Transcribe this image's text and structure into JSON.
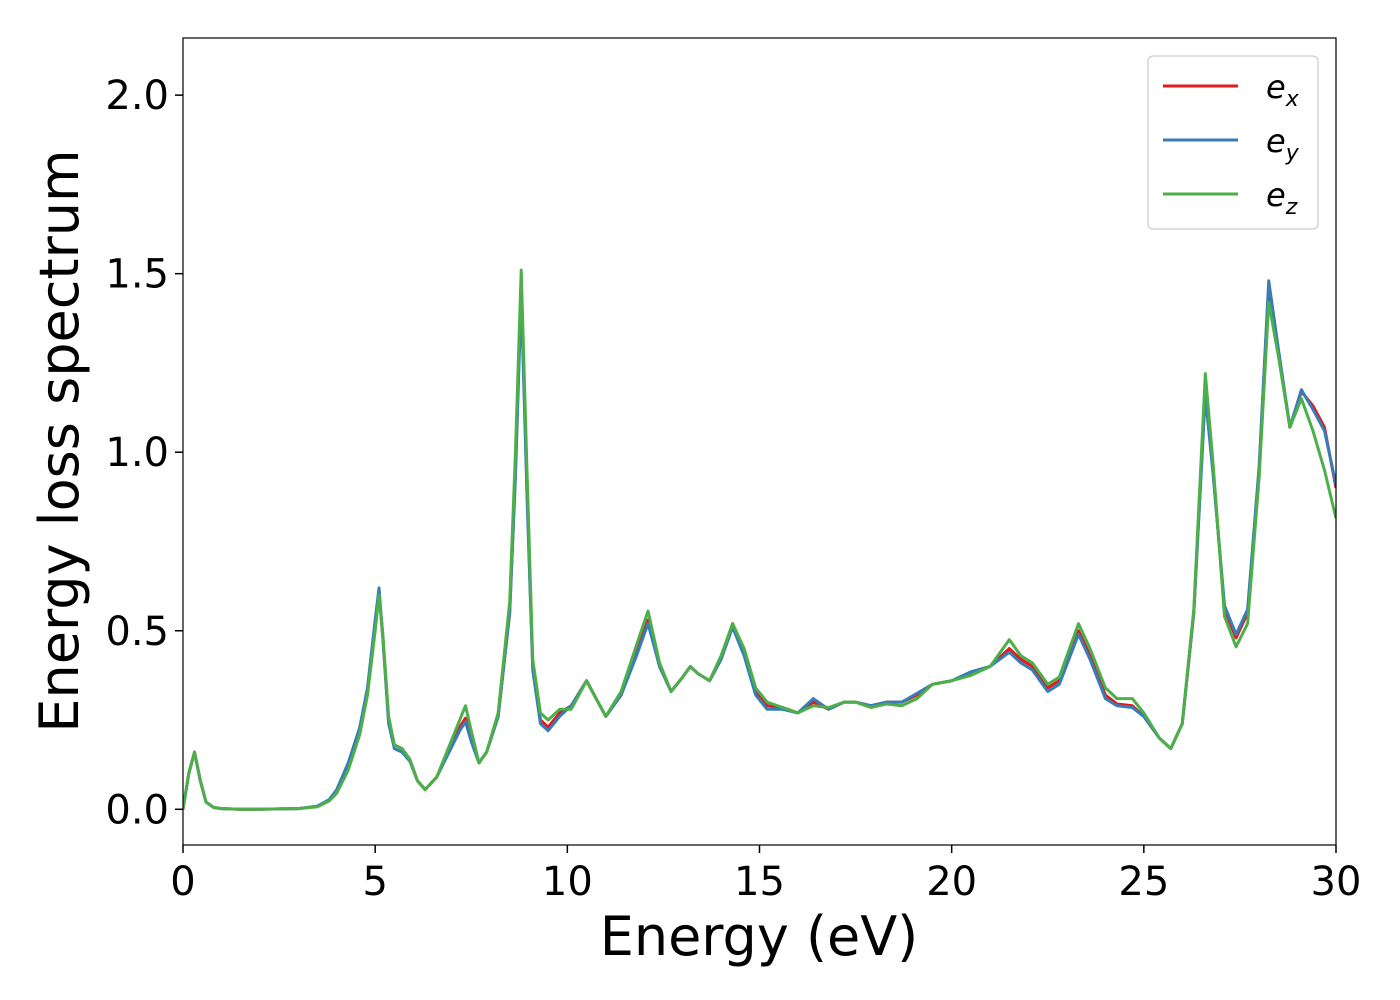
{
  "chart_data": {
    "type": "line",
    "xlabel": "Energy (eV)",
    "ylabel": "Energy loss spectrum",
    "xlim": [
      0,
      30
    ],
    "ylim": [
      -0.1,
      2.16
    ],
    "xticks": [
      0,
      5,
      10,
      15,
      20,
      25,
      30
    ],
    "yticks": [
      {
        "value": 0,
        "label": "0.0"
      },
      {
        "value": 0.5,
        "label": "0.5"
      },
      {
        "value": 1,
        "label": "1.0"
      },
      {
        "value": 1.5,
        "label": "1.5"
      },
      {
        "value": 2,
        "label": "2.0"
      }
    ],
    "legend": "upper right",
    "x": [
      0,
      0.15,
      0.3,
      0.45,
      0.6,
      0.8,
      1.0,
      1.5,
      2,
      2.5,
      3,
      3.5,
      3.8,
      4.0,
      4.3,
      4.6,
      4.8,
      5.0,
      5.1,
      5.2,
      5.35,
      5.5,
      5.7,
      5.9,
      6.1,
      6.3,
      6.6,
      6.9,
      7.2,
      7.35,
      7.5,
      7.7,
      7.9,
      8.2,
      8.5,
      8.65,
      8.8,
      8.95,
      9.1,
      9.3,
      9.5,
      9.8,
      10.1,
      10.5,
      10.8,
      11.0,
      11.4,
      11.8,
      12.1,
      12.4,
      12.7,
      13.0,
      13.2,
      13.4,
      13.7,
      14.0,
      14.3,
      14.6,
      14.9,
      15.2,
      15.6,
      16.0,
      16.4,
      16.8,
      17.2,
      17.5,
      17.9,
      18.3,
      18.7,
      19.1,
      19.5,
      20.0,
      20.5,
      21.0,
      21.5,
      21.8,
      22.1,
      22.5,
      22.8,
      23.3,
      23.6,
      24.0,
      24.3,
      24.7,
      25.0,
      25.4,
      25.7,
      26.0,
      26.3,
      26.6,
      26.8,
      27.1,
      27.4,
      27.7,
      28.0,
      28.25,
      28.5,
      28.8,
      29.1,
      29.4,
      29.7,
      30.0
    ],
    "series": [
      {
        "name": "ex",
        "color": "#e41a1c",
        "values": [
          0.0,
          0.1,
          0.16,
          0.08,
          0.02,
          0.005,
          0.002,
          0.0,
          0.0,
          0.001,
          0.002,
          0.008,
          0.025,
          0.05,
          0.12,
          0.22,
          0.33,
          0.52,
          0.61,
          0.48,
          0.25,
          0.18,
          0.17,
          0.14,
          0.08,
          0.055,
          0.09,
          0.16,
          0.23,
          0.255,
          0.2,
          0.13,
          0.16,
          0.26,
          0.55,
          0.95,
          1.48,
          0.9,
          0.4,
          0.25,
          0.23,
          0.27,
          0.29,
          0.36,
          0.3,
          0.26,
          0.32,
          0.44,
          0.53,
          0.4,
          0.33,
          0.37,
          0.4,
          0.38,
          0.36,
          0.42,
          0.52,
          0.44,
          0.33,
          0.29,
          0.285,
          0.27,
          0.3,
          0.28,
          0.3,
          0.3,
          0.29,
          0.3,
          0.3,
          0.32,
          0.35,
          0.36,
          0.38,
          0.4,
          0.45,
          0.42,
          0.4,
          0.34,
          0.36,
          0.5,
          0.43,
          0.32,
          0.295,
          0.29,
          0.26,
          0.2,
          0.17,
          0.24,
          0.55,
          1.18,
          0.95,
          0.56,
          0.48,
          0.55,
          0.95,
          1.47,
          1.28,
          1.07,
          1.17,
          1.13,
          1.07,
          0.9
        ]
      },
      {
        "name": "ey",
        "color": "#377eb8",
        "values": [
          0.0,
          0.1,
          0.16,
          0.08,
          0.02,
          0.005,
          0.002,
          0.0,
          0.0,
          0.001,
          0.002,
          0.009,
          0.027,
          0.055,
          0.13,
          0.23,
          0.34,
          0.53,
          0.62,
          0.48,
          0.24,
          0.17,
          0.16,
          0.135,
          0.08,
          0.055,
          0.09,
          0.155,
          0.22,
          0.245,
          0.19,
          0.13,
          0.16,
          0.26,
          0.55,
          0.93,
          1.44,
          0.88,
          0.39,
          0.24,
          0.22,
          0.26,
          0.29,
          0.36,
          0.3,
          0.26,
          0.32,
          0.43,
          0.52,
          0.4,
          0.33,
          0.37,
          0.4,
          0.38,
          0.36,
          0.42,
          0.51,
          0.43,
          0.32,
          0.28,
          0.28,
          0.27,
          0.31,
          0.28,
          0.3,
          0.3,
          0.29,
          0.3,
          0.3,
          0.325,
          0.35,
          0.36,
          0.385,
          0.4,
          0.44,
          0.41,
          0.39,
          0.33,
          0.35,
          0.49,
          0.42,
          0.31,
          0.29,
          0.285,
          0.26,
          0.2,
          0.17,
          0.24,
          0.55,
          1.16,
          0.94,
          0.57,
          0.49,
          0.56,
          0.96,
          1.48,
          1.29,
          1.07,
          1.175,
          1.12,
          1.06,
          0.91
        ]
      },
      {
        "name": "ez",
        "color": "#4daf4a",
        "values": [
          0.0,
          0.1,
          0.16,
          0.08,
          0.02,
          0.005,
          0.002,
          0.0,
          0.0,
          0.001,
          0.002,
          0.007,
          0.023,
          0.045,
          0.11,
          0.21,
          0.32,
          0.5,
          0.6,
          0.49,
          0.26,
          0.18,
          0.17,
          0.14,
          0.08,
          0.055,
          0.09,
          0.17,
          0.25,
          0.29,
          0.22,
          0.13,
          0.16,
          0.27,
          0.58,
          1.0,
          1.51,
          0.95,
          0.42,
          0.27,
          0.25,
          0.28,
          0.28,
          0.36,
          0.3,
          0.26,
          0.33,
          0.46,
          0.555,
          0.41,
          0.33,
          0.37,
          0.4,
          0.38,
          0.36,
          0.43,
          0.52,
          0.45,
          0.34,
          0.3,
          0.285,
          0.27,
          0.29,
          0.285,
          0.3,
          0.3,
          0.285,
          0.295,
          0.29,
          0.31,
          0.35,
          0.36,
          0.375,
          0.4,
          0.475,
          0.43,
          0.41,
          0.35,
          0.37,
          0.52,
          0.45,
          0.34,
          0.31,
          0.31,
          0.27,
          0.2,
          0.17,
          0.24,
          0.56,
          1.22,
          0.97,
          0.54,
          0.455,
          0.52,
          0.93,
          1.42,
          1.27,
          1.07,
          1.15,
          1.06,
          0.95,
          0.815
        ]
      }
    ]
  }
}
